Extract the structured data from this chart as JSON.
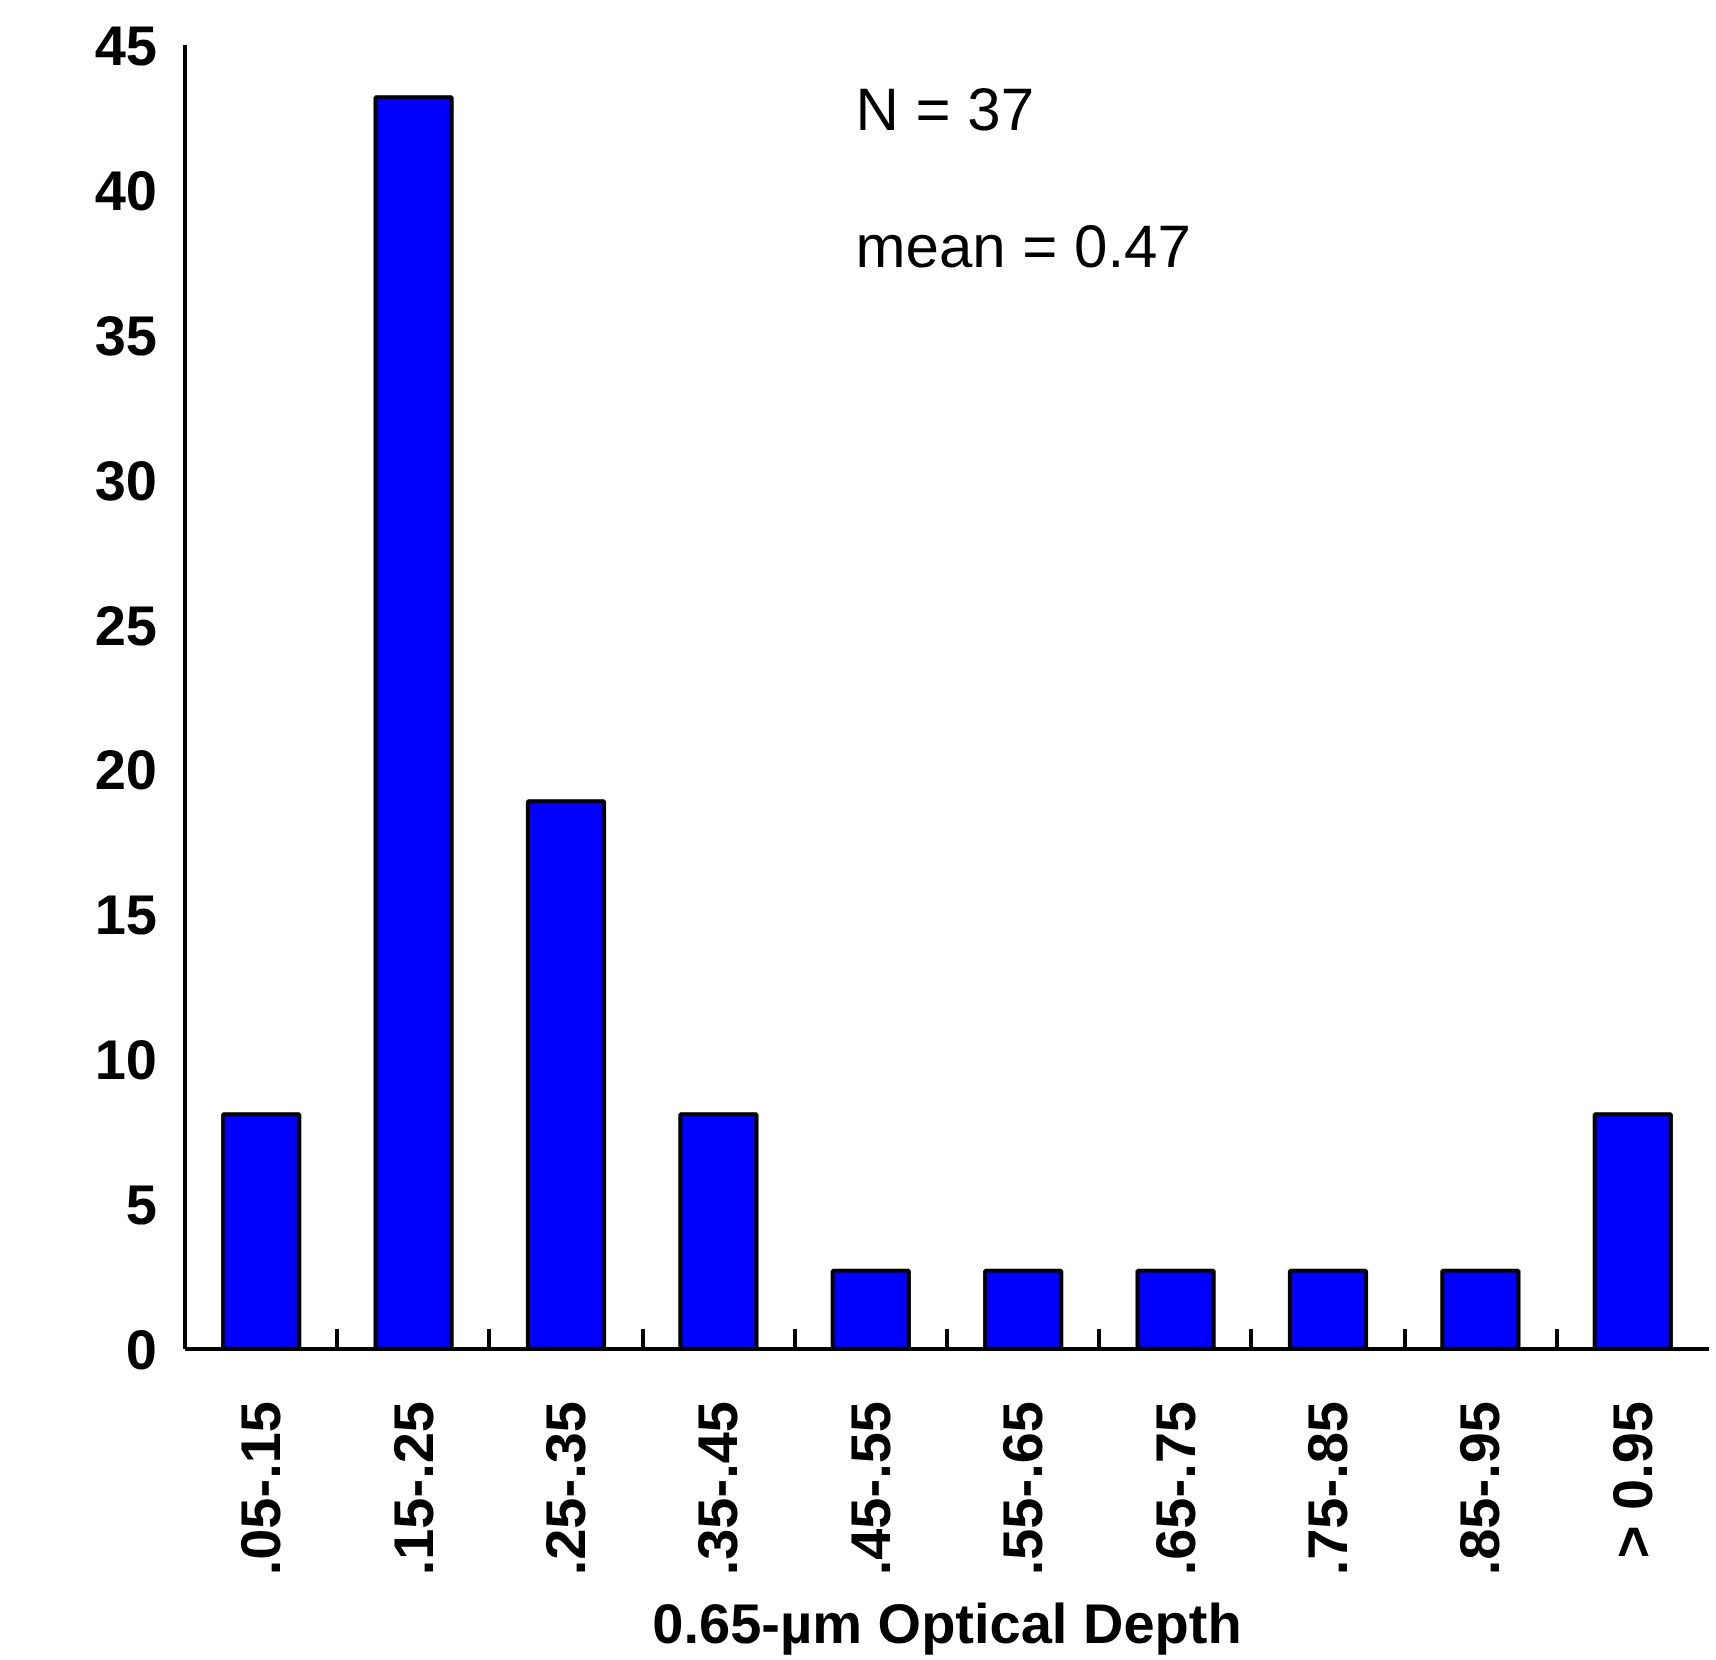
{
  "chart_data": {
    "type": "bar",
    "xlabel": "0.65-µm Optical Depth",
    "categories": [
      ".05-.15",
      ".15-.25",
      ".25-.35",
      ".35-.45",
      ".45-.55",
      ".55-.65",
      ".65-.75",
      ".75-.85",
      ".85-.95",
      "> 0.95"
    ],
    "values": [
      8.1,
      43.2,
      18.9,
      8.1,
      2.7,
      2.7,
      2.7,
      2.7,
      2.7,
      8.1
    ],
    "color": "#0000ff",
    "ylim": [
      0,
      45
    ],
    "yticks": [
      0,
      5,
      10,
      15,
      20,
      25,
      30,
      35,
      40,
      45
    ],
    "grid": false,
    "annotations": [
      "N = 37",
      "mean = 0.47"
    ]
  }
}
